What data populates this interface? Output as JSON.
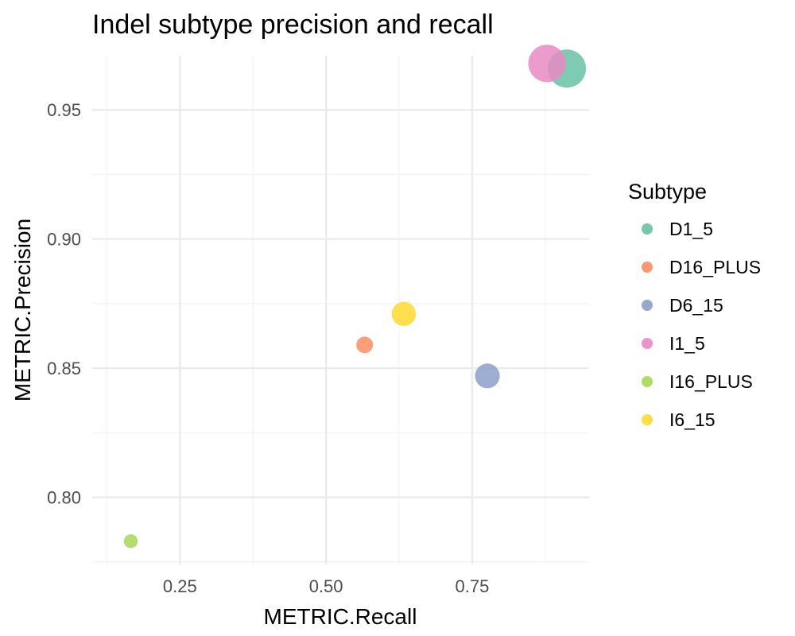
{
  "chart_data": {
    "type": "scatter",
    "title": "Indel subtype precision and recall",
    "xlabel": "METRIC.Recall",
    "ylabel": "METRIC.Precision",
    "xlim": [
      0.1,
      0.95
    ],
    "ylim": [
      0.774,
      0.971
    ],
    "x_ticks": [
      0.25,
      0.5,
      0.75
    ],
    "x_tick_labels": [
      "0.25",
      "0.50",
      "0.75"
    ],
    "y_ticks": [
      0.8,
      0.85,
      0.9,
      0.95
    ],
    "y_tick_labels": [
      "0.80",
      "0.85",
      "0.90",
      "0.95"
    ],
    "grid": true,
    "legend": {
      "title": "Subtype",
      "placement": "right"
    },
    "size_encoding": "relative point size (area scale), unlabeled",
    "series": [
      {
        "name": "D1_5",
        "color": "#66c2a5",
        "x": 0.912,
        "y": 0.966,
        "size": 1.0
      },
      {
        "name": "D16_PLUS",
        "color": "#fc8d62",
        "x": 0.566,
        "y": 0.859,
        "size": 0.16
      },
      {
        "name": "D6_15",
        "color": "#8da0cb",
        "x": 0.776,
        "y": 0.847,
        "size": 0.4
      },
      {
        "name": "I1_5",
        "color": "#e78ac3",
        "x": 0.878,
        "y": 0.968,
        "size": 0.96
      },
      {
        "name": "I16_PLUS",
        "color": "#a6d854",
        "x": 0.166,
        "y": 0.783,
        "size": 0.1
      },
      {
        "name": "I6_15",
        "color": "#ffd92f",
        "x": 0.633,
        "y": 0.871,
        "size": 0.38
      }
    ]
  }
}
